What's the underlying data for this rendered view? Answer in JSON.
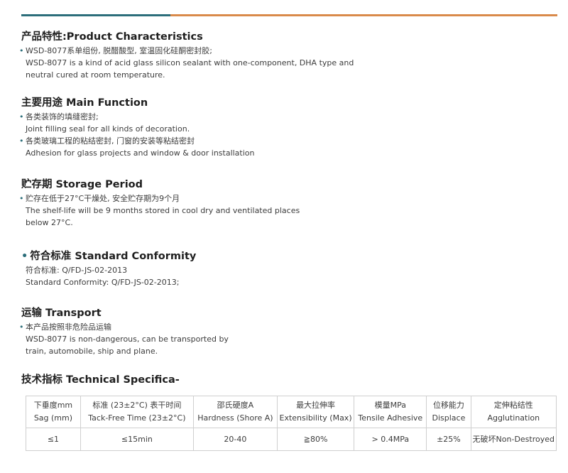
{
  "colors": {
    "teal": "#2c6e7a",
    "orange": "#d98a4a",
    "bullet": "#2c6e7a"
  },
  "sections": {
    "characteristics": {
      "heading": "产品特性:Product Characteristics",
      "lines": [
        "WSD-8077系单组份, 脱醋酸型, 室温固化硅酮密封胶;",
        "WSD-8077 is a kind of acid glass silicon sealant with one-component, DHA type and",
        "neutral cured at room temperature."
      ]
    },
    "main_function": {
      "heading": "主要用途 Main Function",
      "lines": [
        "各类装饰的填缝密封;",
        "Joint filling seal for all kinds of decoration.",
        "各类玻璃工程的粘结密封, 门窗的安装等粘结密封",
        "Adhesion for glass projects and window & door installation"
      ]
    },
    "storage": {
      "heading": "贮存期 Storage Period",
      "lines": [
        "贮存在低于27°C干燥处, 安全贮存期为9个月",
        "The shelf-life will be 9 months stored in cool dry and ventilated places",
        "below 27°C."
      ]
    },
    "conformity": {
      "heading": "符合标准 Standard Conformity",
      "lines": [
        "符合标准: Q/FD-JS-02-2013",
        "Standard Conformity: Q/FD-JS-02-2013;"
      ]
    },
    "transport": {
      "heading": "运输 Transport",
      "lines": [
        "本产品按照非危险品运输",
        "WSD-8077  is  non-dangerous, can  be  transported  by",
        "train, automobile, ship and plane."
      ]
    },
    "technical": {
      "heading": "技术指标 Technical Specifica-"
    }
  },
  "table": {
    "headers": [
      [
        "下垂度mm",
        "Sag (mm)"
      ],
      [
        "标准 (23±2°C) 表干时间",
        "Tack-Free Time (23±2°C)"
      ],
      [
        "邵氏硬度A",
        "Hardness (Shore A)"
      ],
      [
        "最大拉伸率",
        "Extensibility (Max)"
      ],
      [
        "模量MPa",
        "Tensile Adhesive"
      ],
      [
        "位移能力",
        "Displace"
      ],
      [
        "定伸粘结性",
        "Agglutination"
      ]
    ],
    "values": [
      "≤1",
      "≤15min",
      "20-40",
      "≧80%",
      "> 0.4MPa",
      "±25%",
      "无破坏Non-Destroyed"
    ]
  }
}
